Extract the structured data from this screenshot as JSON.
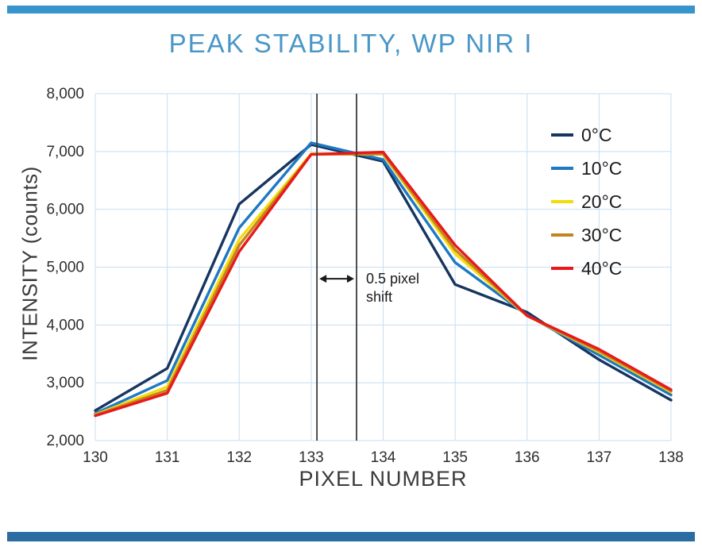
{
  "title": "PEAK STABILITY, WP NIR I",
  "colors": {
    "title": "#4a97c6",
    "top_bar": "#3795cc",
    "bottom_bar": "#2b6ca3",
    "grid": "#c8ddf0",
    "axis_text": "#2e2e2e",
    "marker": "#3c3c3c",
    "annotation": "#1a1a1a"
  },
  "chart_data": {
    "type": "line",
    "title": "PEAK STABILITY, WP NIR I",
    "xlabel": "PIXEL NUMBER",
    "ylabel": "INTENSITY (counts)",
    "xlim": [
      130,
      138
    ],
    "ylim": [
      2000,
      8000
    ],
    "grid": true,
    "legend_position": "inside-top-right",
    "x": [
      130,
      131,
      132,
      133,
      134,
      135,
      136,
      137,
      138
    ],
    "y_ticks": [
      2000,
      3000,
      4000,
      5000,
      6000,
      7000,
      8000
    ],
    "series": [
      {
        "name": "0°C",
        "color": "#163560",
        "values": [
          2520,
          3250,
          6090,
          7120,
          6830,
          4700,
          4220,
          3400,
          2700
        ]
      },
      {
        "name": "10°C",
        "color": "#1e78c2",
        "values": [
          2470,
          3040,
          5680,
          7150,
          6860,
          5080,
          4170,
          3480,
          2790
        ]
      },
      {
        "name": "20°C",
        "color": "#f2dc0c",
        "values": [
          2450,
          2930,
          5480,
          6960,
          6950,
          5230,
          4160,
          3530,
          2840
        ]
      },
      {
        "name": "30°C",
        "color": "#c5821f",
        "values": [
          2440,
          2870,
          5380,
          6950,
          6960,
          5300,
          4160,
          3550,
          2860
        ]
      },
      {
        "name": "40°C",
        "color": "#e8191c",
        "values": [
          2430,
          2820,
          5270,
          6950,
          6990,
          5380,
          4160,
          3580,
          2880
        ]
      }
    ],
    "annotation": {
      "label_lines": [
        "0.5 pixel",
        "shift"
      ],
      "marker_lines_x": [
        133.08,
        133.63
      ],
      "arrow_y": 4800
    }
  }
}
